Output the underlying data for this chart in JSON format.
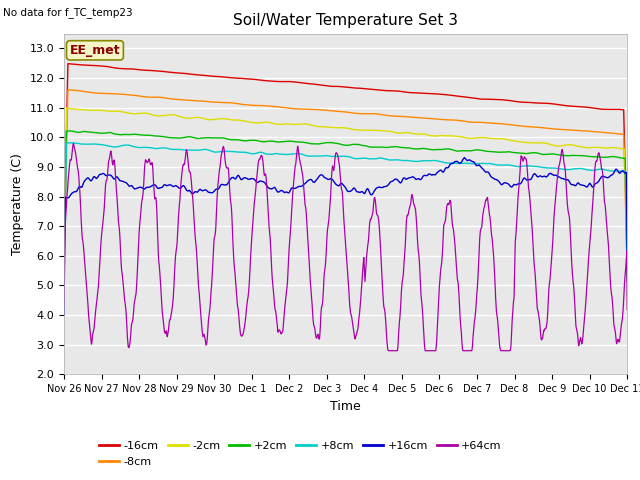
{
  "title": "Soil/Water Temperature Set 3",
  "xlabel": "Time",
  "ylabel": "Temperature (C)",
  "note": "No data for f_TC_temp23",
  "ylim": [
    2.0,
    13.5
  ],
  "yticks": [
    2.0,
    3.0,
    4.0,
    5.0,
    6.0,
    7.0,
    8.0,
    9.0,
    10.0,
    11.0,
    12.0,
    13.0
  ],
  "fig_bg_color": "#ffffff",
  "plot_bg_color": "#e8e8e8",
  "series": [
    {
      "label": "-16cm",
      "color": "#dd0000"
    },
    {
      "label": "-8cm",
      "color": "#ff8800"
    },
    {
      "label": "-2cm",
      "color": "#dddd00"
    },
    {
      "label": "+2cm",
      "color": "#00bb00"
    },
    {
      "label": "+8cm",
      "color": "#00cccc"
    },
    {
      "label": "+16cm",
      "color": "#0000cc"
    },
    {
      "label": "+64cm",
      "color": "#aa00aa"
    }
  ],
  "xtick_labels": [
    "Nov 26",
    "Nov 27",
    "Nov 28",
    "Nov 29",
    "Nov 30",
    "Dec 1",
    "Dec 2",
    "Dec 3",
    "Dec 4",
    "Dec 5",
    "Dec 6",
    "Dec 7",
    "Dec 8",
    "Dec 9",
    "Dec 10",
    "Dec 11"
  ],
  "n_points": 1440,
  "duration_days": 15,
  "ee_met_label": "EE_met"
}
